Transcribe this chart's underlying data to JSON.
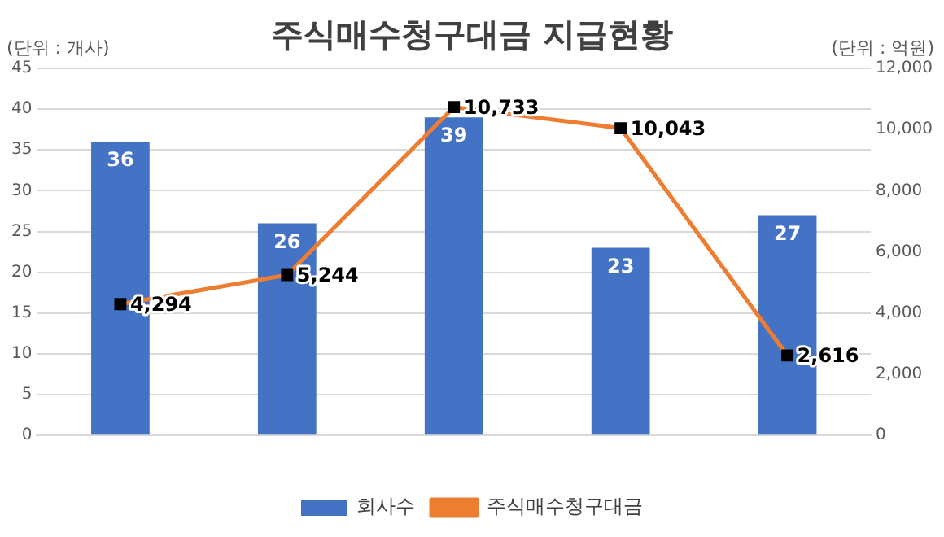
{
  "chart_data": {
    "type": "bar",
    "title": "주식매수청구대금 지급현황",
    "ylabel": "(단위 : 개사)",
    "y2label": "(단위 : 억원)",
    "categories": [
      null,
      null,
      null,
      null,
      null
    ],
    "series": [
      {
        "name": "회사수",
        "color": "#4472c4",
        "values": [
          36,
          26,
          39,
          23,
          27
        ]
      },
      {
        "name": "주식매수청구대금",
        "type": "line",
        "axis": "y2",
        "color": "#ed7d31",
        "marker": "square",
        "values": [
          4294,
          5244,
          10733,
          10043,
          2616
        ],
        "value_labels": [
          "4,294",
          "5,244",
          "10,733",
          "10,043",
          "2,616"
        ]
      }
    ],
    "ylim": [
      0,
      45
    ],
    "yticks": [
      0,
      5,
      10,
      15,
      20,
      25,
      30,
      35,
      40,
      45
    ],
    "y2lim": [
      0,
      12000
    ],
    "y2ticks": [
      {
        "value": 0,
        "label": "0"
      },
      {
        "value": 2000,
        "label": "2,000"
      },
      {
        "value": 4000,
        "label": "4,000"
      },
      {
        "value": 6000,
        "label": "6,000"
      },
      {
        "value": 8000,
        "label": "8,000"
      },
      {
        "value": 10000,
        "label": "10,000"
      },
      {
        "value": 12000,
        "label": "12,000"
      }
    ],
    "grid": "y",
    "legend": "bottom",
    "data_labels": true
  }
}
